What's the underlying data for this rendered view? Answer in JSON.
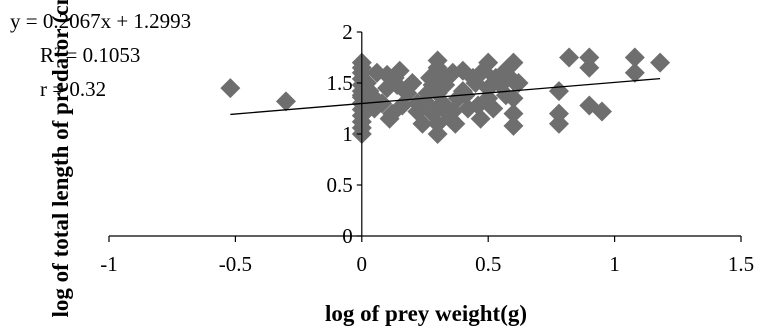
{
  "chart_data": {
    "type": "scatter",
    "title": "",
    "xlabel": "log of prey weight(g)",
    "ylabel": "log of total length of predator (cm)",
    "xlim": [
      -1,
      1.5
    ],
    "ylim": [
      0,
      2
    ],
    "x_ticks": [
      "-1",
      "-0.5",
      "0",
      "0.5",
      "1",
      "1.5"
    ],
    "y_ticks": [
      "0",
      "0.5",
      "1",
      "1.5",
      "2"
    ],
    "grid": false,
    "legend": "none",
    "marker": "diamond",
    "marker_color": "#6e6e6e",
    "annotations": [
      "y = 0.2067x + 1.2993",
      "R² = 0.1053",
      "r = 0.32"
    ],
    "trendline": {
      "slope": 0.2067,
      "intercept": 1.2993,
      "x_range": [
        -0.52,
        1.18
      ]
    },
    "series": [
      {
        "x": [
          -0.52,
          -0.3,
          0,
          0,
          0,
          0,
          0,
          0,
          0,
          0,
          0,
          0,
          0,
          0,
          0,
          0,
          0.02,
          0.03,
          0.05,
          0.06,
          0.08,
          0.1,
          0.11,
          0.13,
          0.15,
          0.05,
          0.12,
          0.14,
          0.16,
          0.18,
          0.2,
          0.22,
          0.24,
          0.1,
          0.18,
          0.25,
          0.27,
          0.28,
          0.3,
          0.3,
          0.3,
          0.3,
          0.3,
          0.3,
          0.32,
          0.33,
          0.35,
          0.36,
          0.38,
          0.4,
          0.42,
          0.44,
          0.34,
          0.37,
          0.41,
          0.45,
          0.46,
          0.47,
          0.48,
          0.5,
          0.5,
          0.5,
          0.52,
          0.53,
          0.55,
          0.56,
          0.57,
          0.58,
          0.6,
          0.6,
          0.6,
          0.62,
          0.6,
          0.6,
          0.4,
          0.33,
          0.26,
          0.22,
          0.28,
          0.36,
          0.78,
          0.78,
          0.78,
          0.82,
          0.9,
          0.9,
          0.9,
          0.95,
          1.08,
          1.08,
          1.18
        ],
        "y": [
          1.45,
          1.32,
          1.0,
          1.06,
          1.12,
          1.18,
          1.24,
          1.3,
          1.36,
          1.42,
          1.48,
          1.54,
          1.6,
          1.65,
          1.7,
          1.38,
          1.5,
          1.42,
          1.25,
          1.6,
          1.3,
          1.45,
          1.15,
          1.55,
          1.62,
          1.35,
          1.2,
          1.48,
          1.28,
          1.4,
          1.5,
          1.22,
          1.1,
          1.58,
          1.45,
          1.32,
          1.55,
          1.2,
          1.0,
          1.1,
          1.25,
          1.4,
          1.65,
          1.72,
          1.3,
          1.48,
          1.15,
          1.6,
          1.35,
          1.42,
          1.25,
          1.55,
          1.2,
          1.1,
          1.38,
          1.5,
          1.28,
          1.15,
          1.62,
          1.45,
          1.7,
          1.35,
          1.25,
          1.55,
          1.48,
          1.6,
          1.38,
          1.65,
          1.52,
          1.7,
          1.2,
          1.5,
          1.08,
          1.35,
          1.62,
          1.55,
          1.4,
          1.3,
          1.48,
          1.22,
          1.42,
          1.2,
          1.1,
          1.75,
          1.75,
          1.65,
          1.28,
          1.22,
          1.75,
          1.6,
          1.7
        ]
      }
    ]
  }
}
